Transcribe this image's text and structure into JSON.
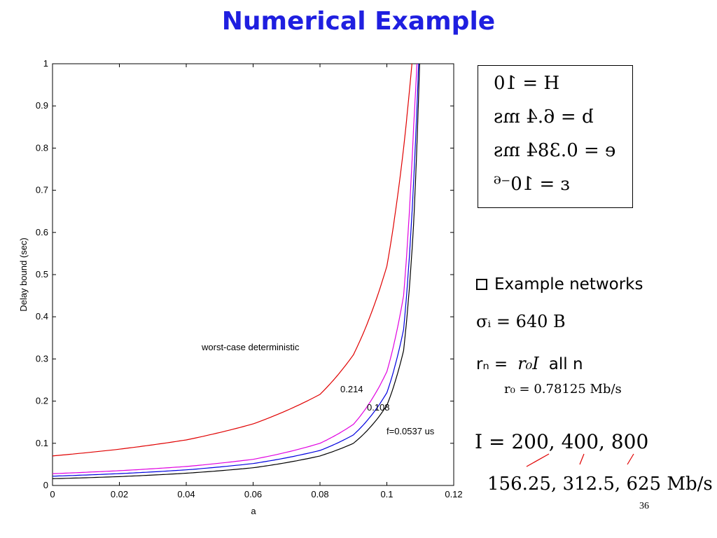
{
  "slide": {
    "title": "Numerical Example",
    "page_number": "36"
  },
  "params": {
    "lines": [
      "H = 10",
      "b = 6.4 ms",
      "e = 0.384 ms",
      "ε = 10⁻⁶"
    ]
  },
  "examples": {
    "heading": "Example networks",
    "sigma": "σᵢ = 640 B",
    "rn_label": "rₙ =",
    "rn_formula": "r₀I",
    "rn_suffix": "all n",
    "r0": "r₀ = 0.78125 Mb/s",
    "I_values": "I = 200, 400, 800",
    "rates": "156.25, 312.5, 625 Mb/s"
  },
  "colors": {
    "title": "#1f1fe0",
    "worst_case": "#e00000",
    "f214": "#e000e0",
    "f108": "#0000e0",
    "f0537": "#000000",
    "annot": "#e00000"
  },
  "chart_data": {
    "type": "line",
    "xlabel": "a",
    "ylabel": "Delay bound (sec)",
    "xlim": [
      0,
      0.12
    ],
    "ylim": [
      0,
      1
    ],
    "xticks": [
      "0",
      "0.02",
      "0.04",
      "0.06",
      "0.08",
      "0.1",
      "0.12"
    ],
    "yticks": [
      "0",
      "0.1",
      "0.2",
      "0.3",
      "0.4",
      "0.5",
      "0.6",
      "0.7",
      "0.8",
      "0.9",
      "1"
    ],
    "grid": false,
    "series": [
      {
        "name": "worst-case deterministic",
        "color": "#e00000",
        "x": [
          0,
          0.02,
          0.04,
          0.06,
          0.08,
          0.09,
          0.1,
          0.105,
          0.1075
        ],
        "y": [
          0.07,
          0.086,
          0.108,
          0.146,
          0.216,
          0.31,
          0.52,
          0.8,
          1.0
        ]
      },
      {
        "name": "0.214",
        "color": "#e000e0",
        "x": [
          0,
          0.02,
          0.04,
          0.06,
          0.08,
          0.09,
          0.1,
          0.105,
          0.108,
          0.109
        ],
        "y": [
          0.028,
          0.035,
          0.045,
          0.062,
          0.1,
          0.145,
          0.27,
          0.45,
          0.85,
          1.0
        ]
      },
      {
        "name": "0.108",
        "color": "#0000e0",
        "x": [
          0,
          0.02,
          0.04,
          0.06,
          0.08,
          0.09,
          0.1,
          0.105,
          0.108,
          0.1095
        ],
        "y": [
          0.022,
          0.028,
          0.037,
          0.052,
          0.083,
          0.12,
          0.22,
          0.37,
          0.72,
          1.0
        ]
      },
      {
        "name": "f=0.0537 us",
        "color": "#000000",
        "x": [
          0,
          0.02,
          0.04,
          0.06,
          0.08,
          0.09,
          0.1,
          0.105,
          0.108,
          0.1098
        ],
        "y": [
          0.016,
          0.021,
          0.029,
          0.042,
          0.07,
          0.1,
          0.19,
          0.32,
          0.62,
          1.0
        ]
      }
    ],
    "annotations": [
      "worst-case deterministic",
      "0.214",
      "0.108",
      "f=0.0537 us"
    ]
  }
}
